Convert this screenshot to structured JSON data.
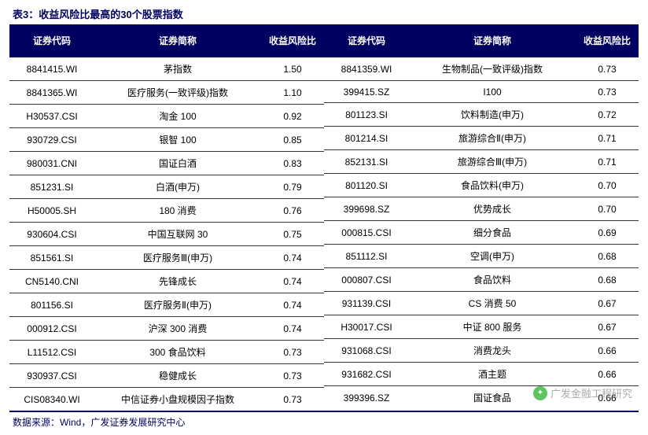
{
  "title": "表3：收益风险比最高的30个股票指数",
  "columns": {
    "code": "证券代码",
    "name": "证券简称",
    "ratio": "收益风险比"
  },
  "left_rows": [
    {
      "code": "8841415.WI",
      "name": "茅指数",
      "ratio": "1.50"
    },
    {
      "code": "8841365.WI",
      "name": "医疗服务(一致评级)指数",
      "ratio": "1.10"
    },
    {
      "code": "H30537.CSI",
      "name": "淘金 100",
      "ratio": "0.92"
    },
    {
      "code": "930729.CSI",
      "name": "银智 100",
      "ratio": "0.85"
    },
    {
      "code": "980031.CNI",
      "name": "国证白酒",
      "ratio": "0.83"
    },
    {
      "code": "851231.SI",
      "name": "白酒(申万)",
      "ratio": "0.79"
    },
    {
      "code": "H50005.SH",
      "name": "180 消费",
      "ratio": "0.76"
    },
    {
      "code": "930604.CSI",
      "name": "中国互联网 30",
      "ratio": "0.75"
    },
    {
      "code": "851561.SI",
      "name": "医疗服务Ⅲ(申万)",
      "ratio": "0.74"
    },
    {
      "code": "CN5140.CNI",
      "name": "先锋成长",
      "ratio": "0.74"
    },
    {
      "code": "801156.SI",
      "name": "医疗服务Ⅱ(申万)",
      "ratio": "0.74"
    },
    {
      "code": "000912.CSI",
      "name": "沪深 300 消费",
      "ratio": "0.74"
    },
    {
      "code": "L11512.CSI",
      "name": "300 食品饮料",
      "ratio": "0.73"
    },
    {
      "code": "930937.CSI",
      "name": "稳健成长",
      "ratio": "0.73"
    },
    {
      "code": "CIS08340.WI",
      "name": "中信证券小盘规模因子指数",
      "ratio": "0.73"
    }
  ],
  "right_rows": [
    {
      "code": "8841359.WI",
      "name": "生物制品(一致评级)指数",
      "ratio": "0.73"
    },
    {
      "code": "399415.SZ",
      "name": "I100",
      "ratio": "0.73"
    },
    {
      "code": "801123.SI",
      "name": "饮料制造(申万)",
      "ratio": "0.72"
    },
    {
      "code": "801214.SI",
      "name": "旅游综合Ⅱ(申万)",
      "ratio": "0.71"
    },
    {
      "code": "852131.SI",
      "name": "旅游综合Ⅲ(申万)",
      "ratio": "0.71"
    },
    {
      "code": "801120.SI",
      "name": "食品饮料(申万)",
      "ratio": "0.70"
    },
    {
      "code": "399698.SZ",
      "name": "优势成长",
      "ratio": "0.70"
    },
    {
      "code": "000815.CSI",
      "name": "细分食品",
      "ratio": "0.69"
    },
    {
      "code": "851112.SI",
      "name": "空调(申万)",
      "ratio": "0.68"
    },
    {
      "code": "000807.CSI",
      "name": "食品饮料",
      "ratio": "0.68"
    },
    {
      "code": "931139.CSI",
      "name": "CS 消费 50",
      "ratio": "0.67"
    },
    {
      "code": "H30017.CSI",
      "name": "中证 800 服务",
      "ratio": "0.67"
    },
    {
      "code": "931068.CSI",
      "name": "消费龙头",
      "ratio": "0.66"
    },
    {
      "code": "931682.CSI",
      "name": "酒主题",
      "ratio": "0.66"
    },
    {
      "code": "399396.SZ",
      "name": "国证食品",
      "ratio": "0.66"
    }
  ],
  "source": "数据来源：Wind，广发证券发展研究中心",
  "watermark": "广发金融工程研究",
  "colors": {
    "header_bg": "#000060",
    "header_text": "#ffffff",
    "text": "#000000",
    "accent": "#000060",
    "row_border": "#333333"
  }
}
